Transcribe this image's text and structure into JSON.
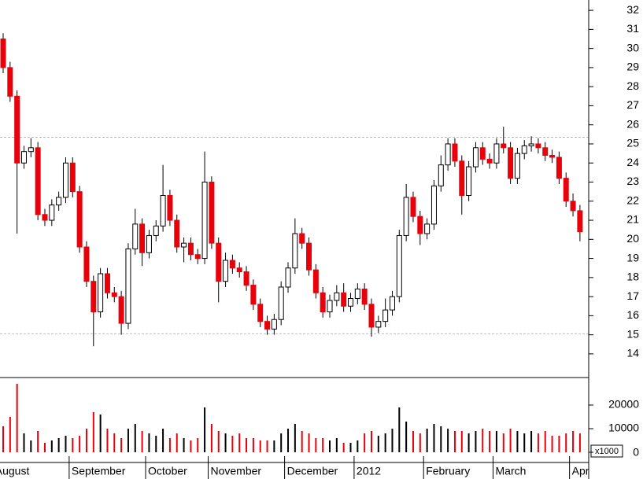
{
  "chart_data": [
    {
      "type": "candlestick",
      "open": [
        30.5,
        29.0,
        27.5,
        24.0,
        24.6,
        24.8,
        21.3,
        21.0,
        21.8,
        22.2,
        24.0,
        22.5,
        19.6,
        17.8,
        16.2,
        18.2,
        17.2,
        17.0,
        15.6,
        19.5,
        20.8,
        19.3,
        20.2,
        20.7,
        22.3,
        21.0,
        19.6,
        19.8,
        19.2,
        19.0,
        23.0,
        19.8,
        17.8,
        18.9,
        18.5,
        18.3,
        17.6,
        16.6,
        15.7,
        15.3,
        15.8,
        17.5,
        18.5,
        20.3,
        19.8,
        18.4,
        17.2,
        16.2,
        16.8,
        17.2,
        16.5,
        16.9,
        17.4,
        16.6,
        15.4,
        15.7,
        16.3,
        17.0,
        20.2,
        22.2,
        21.2,
        20.3,
        20.8,
        22.8,
        23.9,
        25.0,
        24.1,
        22.3,
        23.8,
        24.8,
        24.2,
        24.0,
        25.0,
        24.8,
        23.2,
        24.5,
        24.9,
        25.0,
        24.8,
        24.4,
        24.3,
        23.2,
        22.0,
        21.5
      ],
      "high": [
        30.8,
        29.3,
        27.8,
        24.9,
        25.3,
        25.1,
        21.6,
        22.1,
        22.5,
        24.3,
        24.3,
        22.8,
        19.9,
        18.1,
        18.5,
        18.5,
        17.5,
        17.3,
        19.8,
        21.6,
        21.1,
        20.5,
        21.0,
        23.9,
        22.6,
        21.3,
        20.1,
        20.1,
        19.5,
        24.6,
        23.3,
        20.1,
        19.3,
        19.2,
        18.8,
        18.6,
        17.9,
        16.9,
        16.0,
        16.1,
        17.8,
        18.8,
        21.1,
        20.6,
        20.1,
        18.7,
        17.5,
        17.1,
        17.6,
        17.7,
        17.2,
        17.7,
        17.7,
        16.9,
        16.0,
        16.9,
        17.3,
        20.5,
        22.9,
        22.5,
        21.5,
        21.1,
        23.1,
        24.4,
        25.3,
        25.3,
        24.4,
        24.1,
        25.1,
        25.1,
        24.5,
        25.3,
        25.9,
        25.1,
        24.8,
        25.2,
        25.4,
        25.3,
        25.1,
        24.7,
        24.6,
        23.5,
        22.4,
        21.8
      ],
      "low": [
        28.7,
        27.2,
        20.3,
        23.7,
        24.3,
        21.0,
        20.7,
        20.7,
        21.5,
        21.9,
        22.2,
        19.3,
        17.5,
        14.4,
        15.9,
        16.9,
        16.7,
        15.0,
        15.3,
        19.2,
        18.6,
        19.0,
        19.9,
        20.4,
        20.7,
        19.3,
        18.8,
        18.9,
        18.7,
        18.7,
        19.5,
        16.7,
        17.5,
        18.2,
        18.0,
        17.3,
        16.3,
        15.4,
        15.0,
        15.0,
        15.5,
        17.2,
        18.2,
        19.5,
        18.1,
        16.9,
        15.9,
        15.9,
        16.5,
        16.2,
        16.2,
        16.6,
        16.3,
        14.9,
        15.1,
        15.4,
        16.0,
        16.7,
        19.9,
        20.9,
        19.7,
        20.0,
        20.5,
        22.5,
        23.6,
        23.8,
        21.3,
        22.0,
        23.5,
        23.9,
        23.7,
        23.7,
        24.5,
        22.9,
        22.9,
        24.2,
        24.6,
        24.5,
        24.1,
        24.0,
        22.9,
        21.7,
        21.2,
        19.9
      ],
      "close": [
        29.0,
        27.5,
        24.0,
        24.6,
        24.8,
        21.3,
        21.0,
        21.8,
        22.2,
        24.0,
        22.5,
        19.6,
        17.8,
        16.2,
        18.2,
        17.2,
        17.0,
        15.6,
        19.5,
        20.8,
        19.3,
        20.2,
        20.7,
        22.3,
        21.0,
        19.6,
        19.8,
        19.2,
        19.0,
        23.0,
        19.8,
        17.8,
        18.9,
        18.5,
        18.3,
        17.6,
        16.6,
        15.7,
        15.3,
        15.8,
        17.5,
        18.5,
        20.3,
        19.8,
        18.4,
        17.2,
        16.2,
        16.8,
        17.2,
        16.5,
        16.9,
        17.4,
        16.6,
        15.4,
        15.7,
        16.3,
        17.0,
        20.2,
        22.2,
        21.2,
        20.3,
        20.8,
        22.8,
        23.9,
        25.0,
        24.1,
        22.3,
        23.8,
        24.8,
        24.2,
        24.0,
        25.0,
        24.8,
        23.2,
        24.5,
        24.9,
        25.0,
        24.8,
        24.4,
        24.3,
        23.2,
        22.0,
        21.5,
        20.4
      ],
      "up_color": "#ffffff",
      "down_color": "#e8000b",
      "outline_color": "#000000",
      "months": [
        "August",
        "September",
        "October",
        "November",
        "December",
        "2012",
        "February",
        "March",
        "April"
      ],
      "month_start_index": [
        -1,
        10,
        21,
        30,
        41,
        51,
        61,
        71,
        82
      ],
      "ylim": [
        12.76,
        32.54
      ],
      "yticks": [
        14,
        15,
        16,
        17,
        18,
        19,
        20,
        21,
        22,
        23,
        24,
        25,
        26,
        27,
        28,
        29,
        30,
        31,
        32
      ],
      "reference_lines": [
        25.35,
        15.05
      ]
    },
    {
      "type": "bar",
      "values": [
        11000,
        15000,
        29000,
        8000,
        5000,
        9000,
        4000,
        5000,
        6000,
        7000,
        6000,
        7000,
        10000,
        17000,
        16000,
        10000,
        8000,
        6000,
        10000,
        12000,
        9000,
        8000,
        7000,
        10000,
        6000,
        8000,
        6000,
        5000,
        6000,
        19000,
        12000,
        9000,
        8000,
        7000,
        8000,
        6000,
        6000,
        5000,
        5000,
        5000,
        8000,
        10000,
        12000,
        9000,
        8000,
        6000,
        6000,
        5000,
        6000,
        4000,
        4000,
        5000,
        8000,
        9000,
        7000,
        8000,
        10000,
        19000,
        13000,
        9000,
        8000,
        10000,
        12000,
        11000,
        10000,
        9000,
        9000,
        8000,
        9000,
        10000,
        9000,
        9000,
        8000,
        10000,
        9000,
        8000,
        9000,
        8000,
        9000,
        7000,
        7000,
        8000,
        9000,
        8000
      ],
      "ylim": [
        0,
        31000
      ],
      "yticks": [
        0,
        10000,
        20000
      ],
      "unit_label": "x1000"
    }
  ]
}
